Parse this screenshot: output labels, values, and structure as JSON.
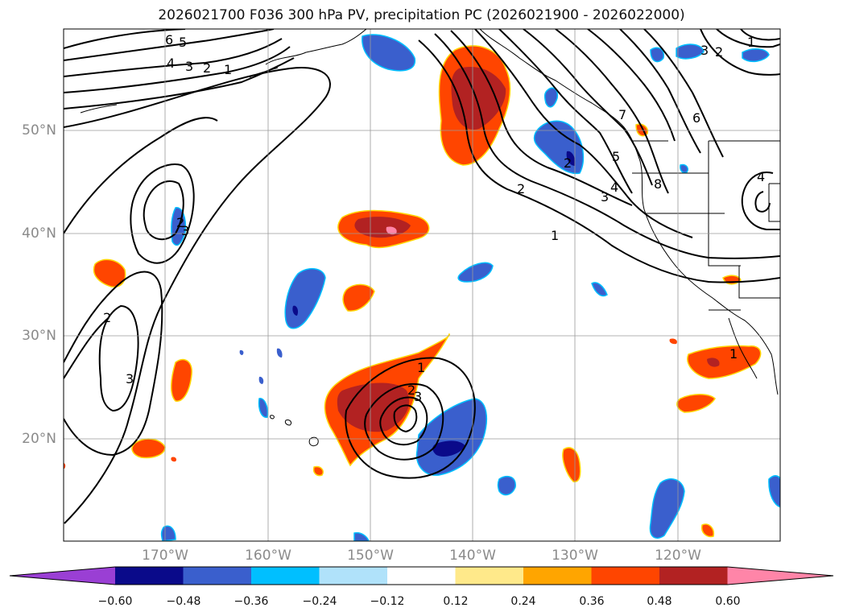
{
  "title": "2026021700 F036 300 hPa PV, precipitation PC (2026021900 - 2026022000)",
  "lon_labels": [
    "170°W",
    "160°W",
    "150°W",
    "140°W",
    "130°W",
    "120°W"
  ],
  "lat_labels": [
    "50°N",
    "40°N",
    "30°N",
    "20°N"
  ],
  "colorbar": {
    "ticks": [
      "−0.60",
      "−0.48",
      "−0.36",
      "−0.24",
      "−0.12",
      "0.12",
      "0.24",
      "0.36",
      "0.48",
      "0.60"
    ],
    "colors": [
      "#9a3fd4",
      "#0a0a8a",
      "#3a5fcd",
      "#00bfff",
      "#b0e2fa",
      "#ffffff",
      "#ffe98a",
      "#ffa500",
      "#ff4500",
      "#b22222",
      "#ff85a8"
    ]
  },
  "contour_labels": [
    "6",
    "5",
    "4",
    "3",
    "2",
    "1",
    "1",
    "2",
    "3",
    "4",
    "5",
    "6",
    "7",
    "8",
    "2",
    "3",
    "4",
    "1",
    "2",
    "3",
    "2",
    "3",
    "1",
    "2",
    "3",
    "1",
    "2"
  ]
}
